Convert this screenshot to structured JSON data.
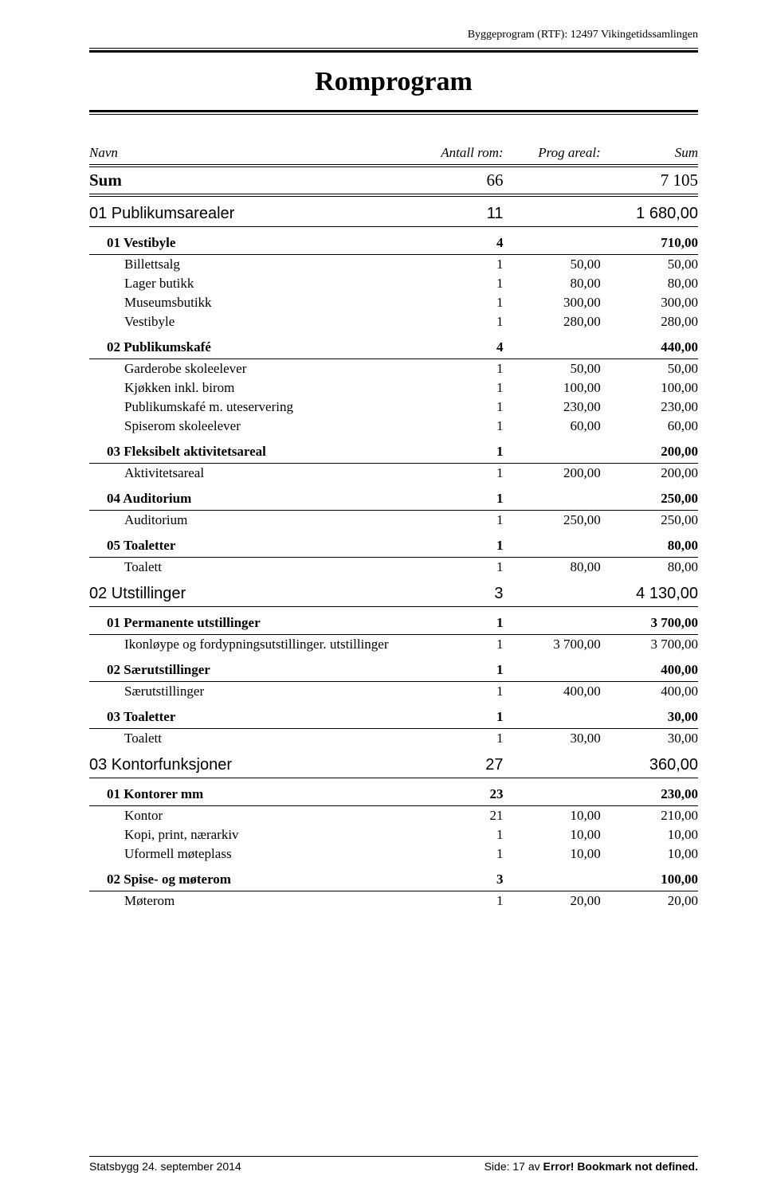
{
  "header": {
    "right": "Byggeprogram (RTF): 12497 Vikingetidssamlingen"
  },
  "title": "Romprogram",
  "columns": {
    "name": "Navn",
    "count": "Antall rom:",
    "area": "Prog areal:",
    "sum": "Sum"
  },
  "sumRow": {
    "name": "Sum",
    "count": "66",
    "sum": "7 105"
  },
  "rows": [
    {
      "lvl": 1,
      "name": "01 Publikumsarealer",
      "count": "11",
      "sum": "1 680,00"
    },
    {
      "lvl": 2,
      "name": "01 Vestibyle",
      "count": "4",
      "sum": "710,00"
    },
    {
      "lvl": 3,
      "name": "Billettsalg",
      "count": "1",
      "area": "50,00",
      "sum": "50,00"
    },
    {
      "lvl": 3,
      "name": "Lager butikk",
      "count": "1",
      "area": "80,00",
      "sum": "80,00"
    },
    {
      "lvl": 3,
      "name": "Museumsbutikk",
      "count": "1",
      "area": "300,00",
      "sum": "300,00"
    },
    {
      "lvl": 3,
      "name": "Vestibyle",
      "count": "1",
      "area": "280,00",
      "sum": "280,00"
    },
    {
      "lvl": 2,
      "name": "02 Publikumskafé",
      "count": "4",
      "sum": "440,00"
    },
    {
      "lvl": 3,
      "name": "Garderobe skoleelever",
      "count": "1",
      "area": "50,00",
      "sum": "50,00"
    },
    {
      "lvl": 3,
      "name": "Kjøkken inkl. birom",
      "count": "1",
      "area": "100,00",
      "sum": "100,00"
    },
    {
      "lvl": 3,
      "name": "Publikumskafé m. uteservering",
      "count": "1",
      "area": "230,00",
      "sum": "230,00"
    },
    {
      "lvl": 3,
      "name": "Spiserom skoleelever",
      "count": "1",
      "area": "60,00",
      "sum": "60,00"
    },
    {
      "lvl": 2,
      "name": "03 Fleksibelt aktivitetsareal",
      "count": "1",
      "sum": "200,00"
    },
    {
      "lvl": 3,
      "name": "Aktivitetsareal",
      "count": "1",
      "area": "200,00",
      "sum": "200,00"
    },
    {
      "lvl": 2,
      "name": "04 Auditorium",
      "count": "1",
      "sum": "250,00"
    },
    {
      "lvl": 3,
      "name": "Auditorium",
      "count": "1",
      "area": "250,00",
      "sum": "250,00"
    },
    {
      "lvl": 2,
      "name": "05 Toaletter",
      "count": "1",
      "sum": "80,00"
    },
    {
      "lvl": 3,
      "name": "Toalett",
      "count": "1",
      "area": "80,00",
      "sum": "80,00"
    },
    {
      "lvl": 1,
      "name": "02 Utstillinger",
      "count": "3",
      "sum": "4 130,00"
    },
    {
      "lvl": 2,
      "name": "01 Permanente utstillinger",
      "count": "1",
      "sum": "3 700,00"
    },
    {
      "lvl": 3,
      "name": "Ikonløype og fordypningsutstillinger. utstillinger",
      "count": "1",
      "area": "3 700,00",
      "sum": "3 700,00"
    },
    {
      "lvl": 2,
      "name": "02 Særutstillinger",
      "count": "1",
      "sum": "400,00"
    },
    {
      "lvl": 3,
      "name": "Særutstillinger",
      "count": "1",
      "area": "400,00",
      "sum": "400,00"
    },
    {
      "lvl": 2,
      "name": "03 Toaletter",
      "count": "1",
      "sum": "30,00"
    },
    {
      "lvl": 3,
      "name": "Toalett",
      "count": "1",
      "area": "30,00",
      "sum": "30,00"
    },
    {
      "lvl": 1,
      "name": "03 Kontorfunksjoner",
      "count": "27",
      "sum": "360,00"
    },
    {
      "lvl": 2,
      "name": "01 Kontorer mm",
      "count": "23",
      "sum": "230,00"
    },
    {
      "lvl": 3,
      "name": "Kontor",
      "count": "21",
      "area": "10,00",
      "sum": "210,00"
    },
    {
      "lvl": 3,
      "name": "Kopi, print, nærarkiv",
      "count": "1",
      "area": "10,00",
      "sum": "10,00"
    },
    {
      "lvl": 3,
      "name": "Uformell møteplass",
      "count": "1",
      "area": "10,00",
      "sum": "10,00"
    },
    {
      "lvl": 2,
      "name": "02 Spise- og møterom",
      "count": "3",
      "sum": "100,00"
    },
    {
      "lvl": 3,
      "name": "Møterom",
      "count": "1",
      "area": "20,00",
      "sum": "20,00"
    }
  ],
  "footer": {
    "left": "Statsbygg 24. september 2014",
    "rightPrefix": "Side:  17  av ",
    "rightBold": "Error! Bookmark not defined."
  }
}
